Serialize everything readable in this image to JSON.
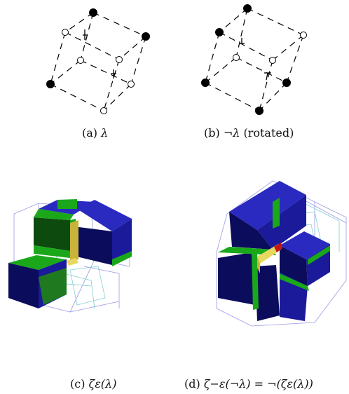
{
  "figure": {
    "panels": [
      {
        "id": "a",
        "caption_label": "(a)",
        "caption_math": "λ",
        "caption_suffix": ""
      },
      {
        "id": "b",
        "caption_label": "(b)",
        "caption_math": "¬λ",
        "caption_suffix": "(rotated)"
      },
      {
        "id": "c",
        "caption_label": "(c)",
        "caption_math": "ζε(λ)",
        "caption_suffix": ""
      },
      {
        "id": "d",
        "caption_label": "(d)",
        "caption_math": "ζ−ε(¬λ) = ¬(ζε(λ))",
        "caption_suffix": ""
      }
    ],
    "colors": {
      "filled_vertex": "#000000",
      "open_vertex": "#ffffff",
      "cube_blue": "#1f1fa8",
      "cube_blue_dark": "#0c0c5c",
      "cube_green": "#1aa81a",
      "cube_yellow": "#c8b43a",
      "cube_red": "#c01818",
      "wire": "#8a8ae0",
      "wire_cyan": "#7fd0d0"
    }
  }
}
